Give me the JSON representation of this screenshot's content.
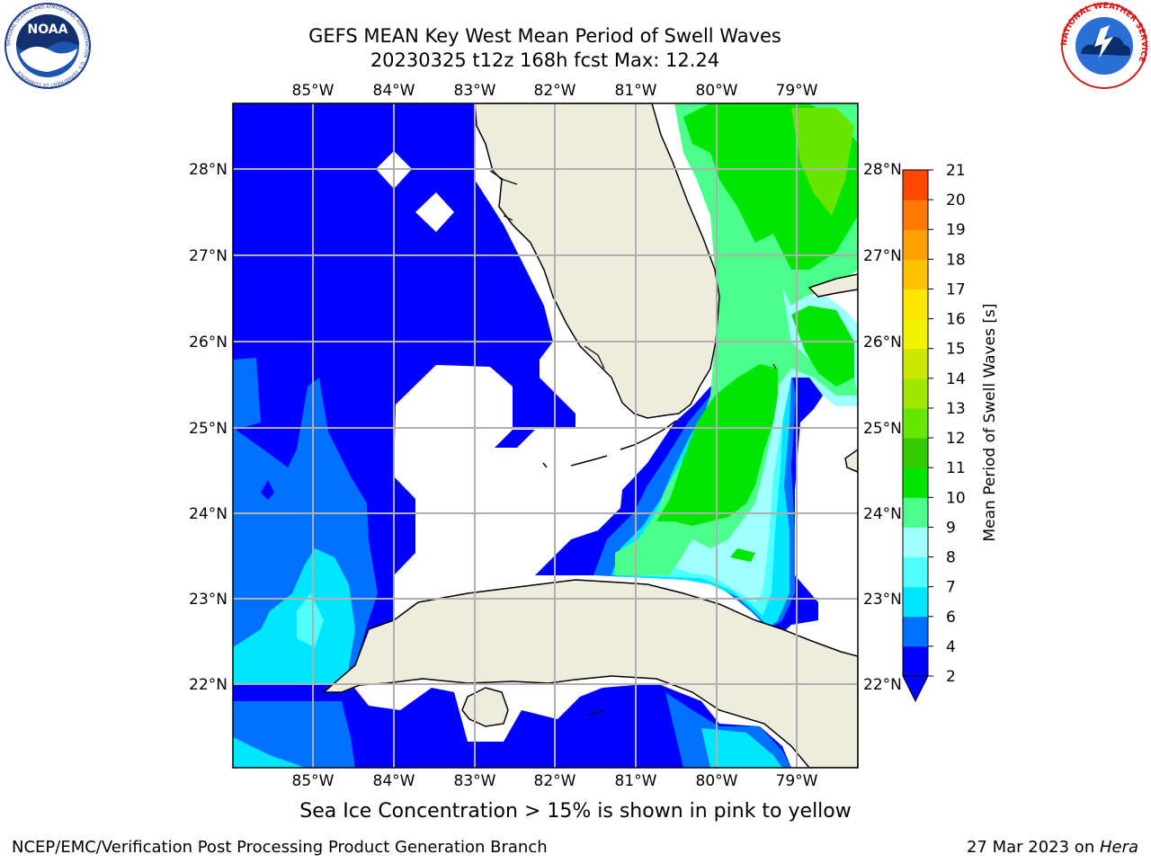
{
  "title": {
    "line1": "GEFS MEAN Key West Mean Period of Swell Waves",
    "line2": "20230325 t12z 168h fcst   Max: 12.24"
  },
  "map": {
    "lon_labels": [
      "85°W",
      "84°W",
      "83°W",
      "82°W",
      "81°W",
      "80°W",
      "79°W"
    ],
    "lat_labels": [
      "28°N",
      "27°N",
      "26°N",
      "25°N",
      "24°N",
      "23°N",
      "22°N"
    ],
    "gridlines": true,
    "land_color": "#eeecdc",
    "no_data_color": "#ffffff"
  },
  "colorbar": {
    "label": "Mean Period of Swell Waves [s]",
    "ticks": [
      "2",
      "4",
      "6",
      "7",
      "8",
      "9",
      "10",
      "11",
      "12",
      "13",
      "14",
      "15",
      "16",
      "17",
      "18",
      "19",
      "20",
      "21"
    ],
    "colors": [
      "#0000ff",
      "#0070ff",
      "#00e6ff",
      "#50ffff",
      "#a0ffff",
      "#4cff8c",
      "#00e600",
      "#33cc00",
      "#66e600",
      "#a0e600",
      "#cce600",
      "#f2f200",
      "#ffe600",
      "#ffc000",
      "#ffa000",
      "#ff7800",
      "#ff4800",
      "#ff0000"
    ],
    "extend": "min"
  },
  "note": "Sea Ice Concentration > 15% is shown in pink to yellow",
  "footer": {
    "left": "NCEP/EMC/Verification Post Processing Product Generation Branch",
    "right_prefix": "27 Mar 2023 on ",
    "right_host": "Hera"
  },
  "logos": {
    "left": "NOAA",
    "left_ring_text": "NATIONAL OCEANIC AND ATMOSPHERIC ADMINISTRATION · U.S. DEPARTMENT OF COMMERCE",
    "right_ring_text": "NATIONAL WEATHER SERVICE"
  }
}
